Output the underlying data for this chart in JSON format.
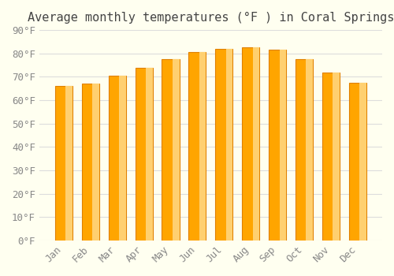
{
  "title": "Average monthly temperatures (°F ) in Coral Springs",
  "months": [
    "Jan",
    "Feb",
    "Mar",
    "Apr",
    "May",
    "Jun",
    "Jul",
    "Aug",
    "Sep",
    "Oct",
    "Nov",
    "Dec"
  ],
  "values": [
    66,
    67,
    70.5,
    74,
    77.5,
    80.5,
    82,
    82.5,
    81.5,
    77.5,
    72,
    67.5
  ],
  "bar_color": "#FFA500",
  "bar_edge_color": "#E08000",
  "ylim": [
    0,
    90
  ],
  "yticks": [
    0,
    10,
    20,
    30,
    40,
    50,
    60,
    70,
    80,
    90
  ],
  "ytick_labels": [
    "0°F",
    "10°F",
    "20°F",
    "30°F",
    "40°F",
    "50°F",
    "60°F",
    "70°F",
    "80°F",
    "90°F"
  ],
  "background_color": "#FFFFF0",
  "grid_color": "#DDDDDD",
  "title_fontsize": 11,
  "tick_fontsize": 9,
  "font_family": "monospace"
}
